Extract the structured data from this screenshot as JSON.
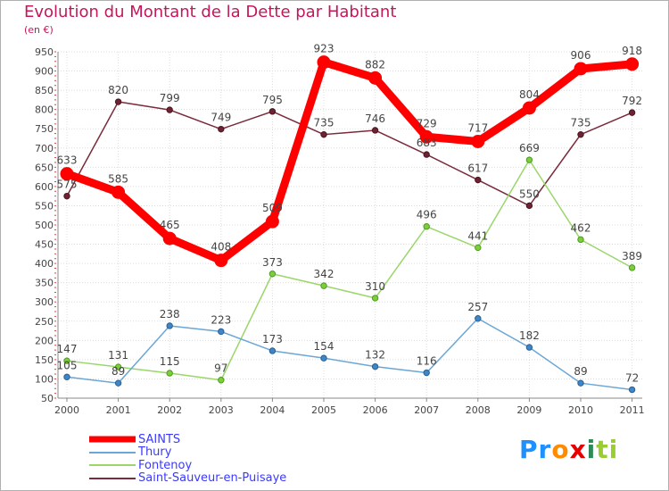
{
  "chart_data": {
    "type": "line",
    "title": "Evolution du Montant de la Dette par Habitant",
    "subtitle": "(en €)",
    "xlabel": "",
    "ylabel": "",
    "ylim": [
      50,
      950
    ],
    "yticks": [
      50,
      100,
      150,
      200,
      250,
      300,
      350,
      400,
      450,
      500,
      550,
      600,
      650,
      700,
      750,
      800,
      850,
      900,
      950
    ],
    "grid": true,
    "categories": [
      "2000",
      "2001",
      "2002",
      "2003",
      "2004",
      "2005",
      "2006",
      "2007",
      "2008",
      "2009",
      "2010",
      "2011"
    ],
    "series": [
      {
        "name": "SAINTS",
        "color": "#ff0000",
        "values": [
          633,
          585,
          465,
          408,
          509,
          923,
          882,
          729,
          717,
          804,
          906,
          918
        ]
      },
      {
        "name": "Thury",
        "color": "#6aa6d6",
        "values": [
          105,
          89,
          238,
          223,
          173,
          154,
          132,
          116,
          257,
          182,
          89,
          72
        ]
      },
      {
        "name": "Fontenoy",
        "color": "#9ad66a",
        "values": [
          147,
          131,
          115,
          97,
          373,
          342,
          310,
          496,
          441,
          669,
          462,
          389
        ]
      },
      {
        "name": "Saint-Sauveur-en-Puisaye",
        "color": "#7a2a3a",
        "values": [
          575,
          820,
          799,
          749,
          795,
          735,
          746,
          683,
          617,
          550,
          735,
          792
        ]
      }
    ]
  },
  "logo": {
    "text_1": "Pr",
    "text_2": "o",
    "text_3": "x",
    "text_4": "i",
    "text_5": "ti"
  }
}
